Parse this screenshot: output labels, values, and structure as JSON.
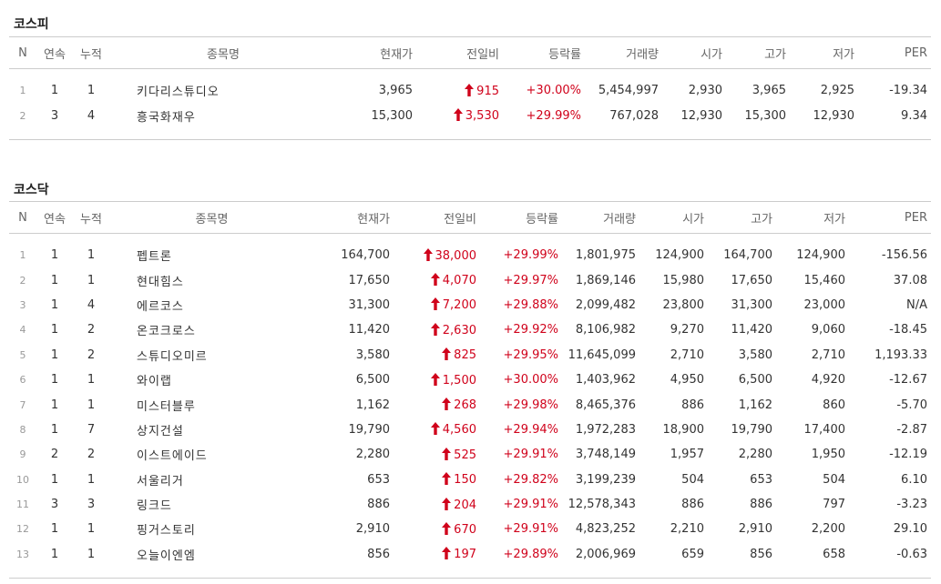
{
  "kospi": {
    "title": "코스피",
    "headers": [
      "N",
      "연속",
      "누적",
      "종목명",
      "현재가",
      "전일비",
      "등락률",
      "거래량",
      "시가",
      "고가",
      "저가",
      "PER"
    ],
    "rows": [
      {
        "n": "1",
        "cont": "1",
        "cum": "1",
        "name": "키다리스튜디오",
        "price": "3,965",
        "diff": "915",
        "rate": "+30.00%",
        "volume": "5,454,997",
        "open": "2,930",
        "high": "3,965",
        "low": "2,925",
        "per": "-19.34"
      },
      {
        "n": "2",
        "cont": "3",
        "cum": "4",
        "name": "흥국화재우",
        "price": "15,300",
        "diff": "3,530",
        "rate": "+29.99%",
        "volume": "767,028",
        "open": "12,930",
        "high": "15,300",
        "low": "12,930",
        "per": "9.34"
      }
    ]
  },
  "kosdaq": {
    "title": "코스닥",
    "headers": [
      "N",
      "연속",
      "누적",
      "종목명",
      "현재가",
      "전일비",
      "등락률",
      "거래량",
      "시가",
      "고가",
      "저가",
      "PER"
    ],
    "rows": [
      {
        "n": "1",
        "cont": "1",
        "cum": "1",
        "name": "펩트론",
        "price": "164,700",
        "diff": "38,000",
        "rate": "+29.99%",
        "volume": "1,801,975",
        "open": "124,900",
        "high": "164,700",
        "low": "124,900",
        "per": "-156.56"
      },
      {
        "n": "2",
        "cont": "1",
        "cum": "1",
        "name": "현대힘스",
        "price": "17,650",
        "diff": "4,070",
        "rate": "+29.97%",
        "volume": "1,869,146",
        "open": "15,980",
        "high": "17,650",
        "low": "15,460",
        "per": "37.08"
      },
      {
        "n": "3",
        "cont": "1",
        "cum": "4",
        "name": "에르코스",
        "price": "31,300",
        "diff": "7,200",
        "rate": "+29.88%",
        "volume": "2,099,482",
        "open": "23,800",
        "high": "31,300",
        "low": "23,000",
        "per": "N/A"
      },
      {
        "n": "4",
        "cont": "1",
        "cum": "2",
        "name": "온코크로스",
        "price": "11,420",
        "diff": "2,630",
        "rate": "+29.92%",
        "volume": "8,106,982",
        "open": "9,270",
        "high": "11,420",
        "low": "9,060",
        "per": "-18.45"
      },
      {
        "n": "5",
        "cont": "1",
        "cum": "2",
        "name": "스튜디오미르",
        "price": "3,580",
        "diff": "825",
        "rate": "+29.95%",
        "volume": "11,645,099",
        "open": "2,710",
        "high": "3,580",
        "low": "2,710",
        "per": "1,193.33"
      },
      {
        "n": "6",
        "cont": "1",
        "cum": "1",
        "name": "와이랩",
        "price": "6,500",
        "diff": "1,500",
        "rate": "+30.00%",
        "volume": "1,403,962",
        "open": "4,950",
        "high": "6,500",
        "low": "4,920",
        "per": "-12.67"
      },
      {
        "n": "7",
        "cont": "1",
        "cum": "1",
        "name": "미스터블루",
        "price": "1,162",
        "diff": "268",
        "rate": "+29.98%",
        "volume": "8,465,376",
        "open": "886",
        "high": "1,162",
        "low": "860",
        "per": "-5.70"
      },
      {
        "n": "8",
        "cont": "1",
        "cum": "7",
        "name": "상지건설",
        "price": "19,790",
        "diff": "4,560",
        "rate": "+29.94%",
        "volume": "1,972,283",
        "open": "18,900",
        "high": "19,790",
        "low": "17,400",
        "per": "-2.87"
      },
      {
        "n": "9",
        "cont": "2",
        "cum": "2",
        "name": "이스트에이드",
        "price": "2,280",
        "diff": "525",
        "rate": "+29.91%",
        "volume": "3,748,149",
        "open": "1,957",
        "high": "2,280",
        "low": "1,950",
        "per": "-12.19"
      },
      {
        "n": "10",
        "cont": "1",
        "cum": "1",
        "name": "서울리거",
        "price": "653",
        "diff": "150",
        "rate": "+29.82%",
        "volume": "3,199,239",
        "open": "504",
        "high": "653",
        "low": "504",
        "per": "6.10"
      },
      {
        "n": "11",
        "cont": "3",
        "cum": "3",
        "name": "링크드",
        "price": "886",
        "diff": "204",
        "rate": "+29.91%",
        "volume": "12,578,343",
        "open": "886",
        "high": "886",
        "low": "797",
        "per": "-3.23"
      },
      {
        "n": "12",
        "cont": "1",
        "cum": "1",
        "name": "핑거스토리",
        "price": "2,910",
        "diff": "670",
        "rate": "+29.91%",
        "volume": "4,823,252",
        "open": "2,210",
        "high": "2,910",
        "low": "2,200",
        "per": "29.10"
      },
      {
        "n": "13",
        "cont": "1",
        "cum": "1",
        "name": "오늘이엔엠",
        "price": "856",
        "diff": "197",
        "rate": "+29.89%",
        "volume": "2,006,969",
        "open": "659",
        "high": "856",
        "low": "658",
        "per": "-0.63"
      }
    ]
  },
  "colors": {
    "up": "#d0021b",
    "border": "#cccccc",
    "header_text": "#666666"
  },
  "icons": {
    "change_direction": "arrow-up-icon"
  }
}
